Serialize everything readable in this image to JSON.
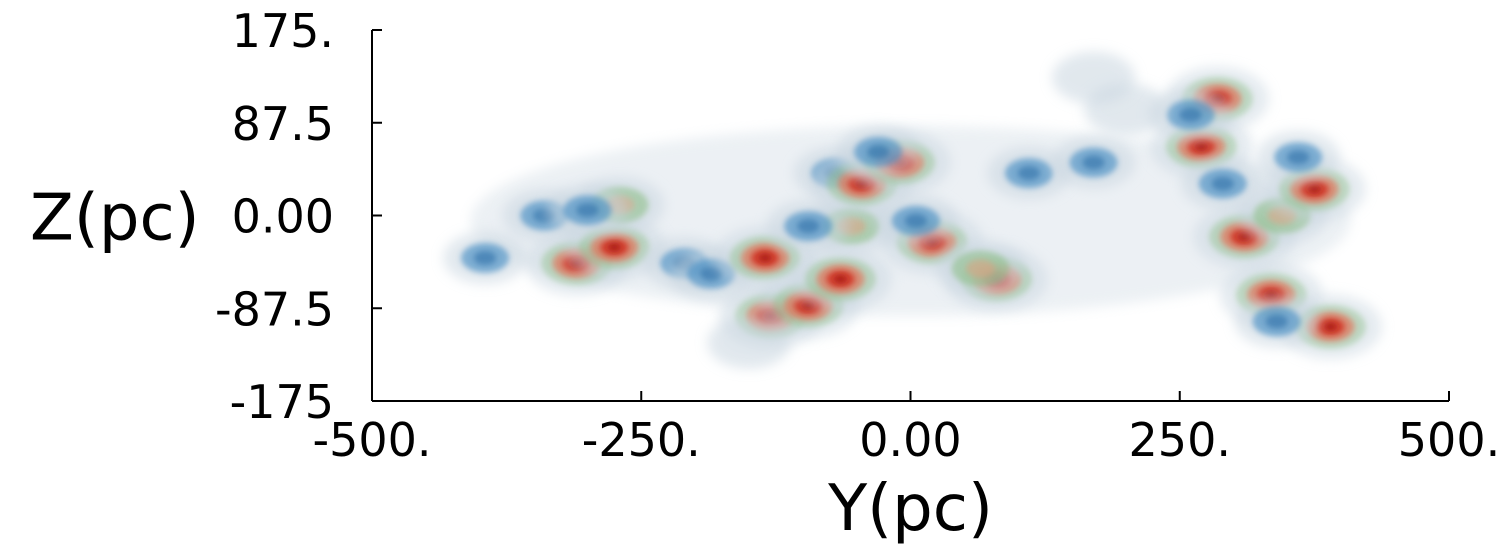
{
  "chart_data": {
    "type": "heatmap",
    "title": "",
    "xlabel": "Y(pc)",
    "ylabel": "Z(pc)",
    "xlim": [
      -500,
      500
    ],
    "ylim": [
      -175,
      175
    ],
    "x_ticks": [
      {
        "value": -500,
        "label": "-500."
      },
      {
        "value": -250,
        "label": "-250."
      },
      {
        "value": 0,
        "label": "0.00"
      },
      {
        "value": 250,
        "label": "250."
      },
      {
        "value": 500,
        "label": "500."
      }
    ],
    "y_ticks": [
      {
        "value": 175,
        "label": "175."
      },
      {
        "value": 87.5,
        "label": "87.5"
      },
      {
        "value": 0,
        "label": "0.00"
      },
      {
        "value": -87.5,
        "label": "-87.5"
      },
      {
        "value": -175,
        "label": "-175"
      }
    ],
    "colors": {
      "faint": "#c9d6e0",
      "low": "#4a8fc4",
      "mid": "#8fbf8a",
      "high": "#d33a2a"
    },
    "features": [
      {
        "y": -310,
        "z": -45,
        "level": "high"
      },
      {
        "y": -275,
        "z": -30,
        "level": "high"
      },
      {
        "y": -270,
        "z": 10,
        "level": "mid"
      },
      {
        "y": -395,
        "z": -40,
        "level": "low"
      },
      {
        "y": -340,
        "z": 0,
        "level": "low"
      },
      {
        "y": -300,
        "z": 5,
        "level": "low"
      },
      {
        "y": -210,
        "z": -45,
        "level": "low"
      },
      {
        "y": -185,
        "z": -55,
        "level": "low"
      },
      {
        "y": -135,
        "z": -40,
        "level": "high"
      },
      {
        "y": -130,
        "z": -95,
        "level": "high"
      },
      {
        "y": -95,
        "z": -85,
        "level": "high"
      },
      {
        "y": -65,
        "z": -60,
        "level": "high"
      },
      {
        "y": -150,
        "z": -120,
        "level": "faint"
      },
      {
        "y": -70,
        "z": 40,
        "level": "low"
      },
      {
        "y": -55,
        "z": -10,
        "level": "mid"
      },
      {
        "y": -45,
        "z": 30,
        "level": "high"
      },
      {
        "y": -10,
        "z": 50,
        "level": "high"
      },
      {
        "y": -30,
        "z": 60,
        "level": "low"
      },
      {
        "y": -95,
        "z": -10,
        "level": "low"
      },
      {
        "y": 20,
        "z": -25,
        "level": "high"
      },
      {
        "y": 5,
        "z": -5,
        "level": "low"
      },
      {
        "y": 80,
        "z": -60,
        "level": "high"
      },
      {
        "y": 65,
        "z": -50,
        "level": "mid"
      },
      {
        "y": 110,
        "z": 40,
        "level": "low"
      },
      {
        "y": 170,
        "z": 50,
        "level": "low"
      },
      {
        "y": 270,
        "z": 65,
        "level": "high"
      },
      {
        "y": 285,
        "z": 110,
        "level": "high"
      },
      {
        "y": 260,
        "z": 95,
        "level": "low"
      },
      {
        "y": 290,
        "z": 30,
        "level": "low"
      },
      {
        "y": 310,
        "z": -20,
        "level": "high"
      },
      {
        "y": 345,
        "z": 0,
        "level": "mid"
      },
      {
        "y": 375,
        "z": 25,
        "level": "high"
      },
      {
        "y": 360,
        "z": 55,
        "level": "low"
      },
      {
        "y": 335,
        "z": -75,
        "level": "high"
      },
      {
        "y": 390,
        "z": -105,
        "level": "high"
      },
      {
        "y": 340,
        "z": -100,
        "level": "low"
      },
      {
        "y": 200,
        "z": 100,
        "level": "faint"
      },
      {
        "y": 170,
        "z": 130,
        "level": "faint"
      }
    ]
  }
}
